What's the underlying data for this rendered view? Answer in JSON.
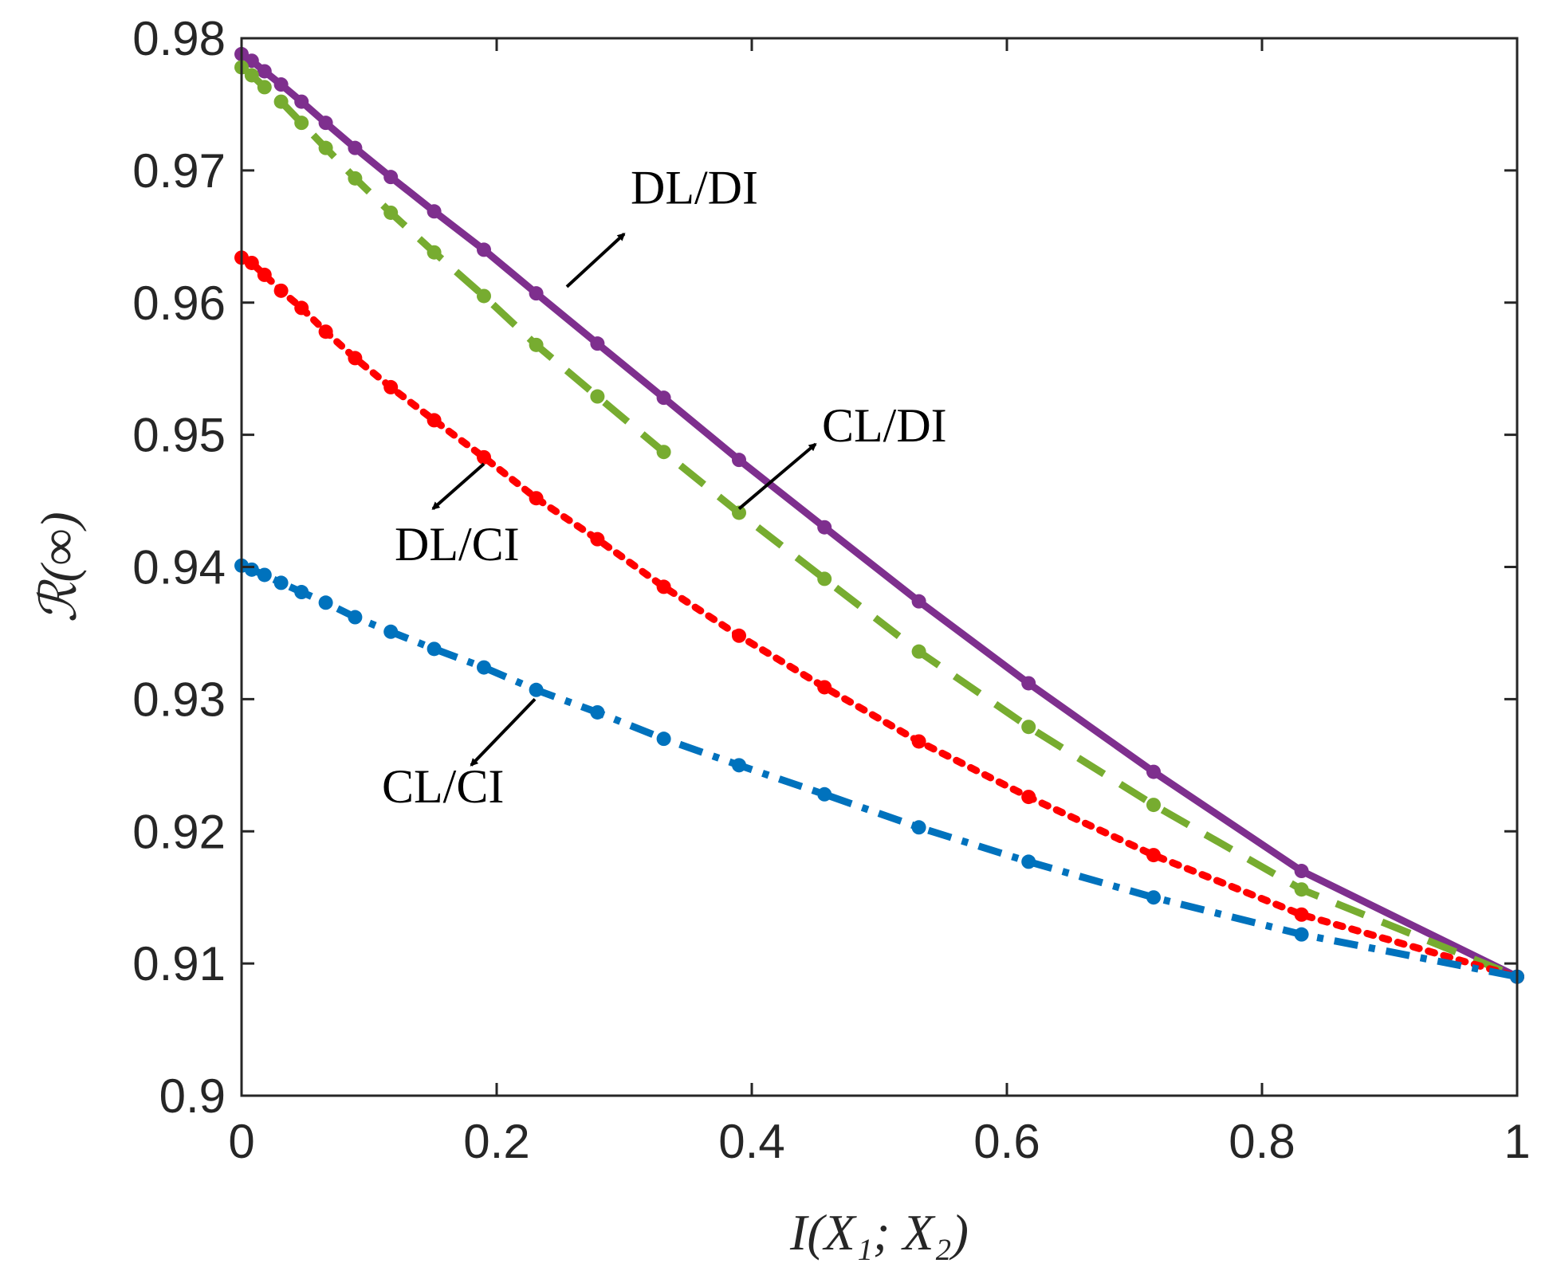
{
  "chart_data": {
    "type": "line",
    "xlabel": "I(X₁; X₂)",
    "ylabel": "ℛ(∞)",
    "xlim": [
      0,
      1
    ],
    "ylim": [
      0.9,
      0.98
    ],
    "x_ticks": [
      0,
      0.2,
      0.4,
      0.6,
      0.8,
      1
    ],
    "x_tick_labels": [
      "0",
      "0.2",
      "0.4",
      "0.6",
      "0.8",
      "1"
    ],
    "y_ticks": [
      0.9,
      0.91,
      0.92,
      0.93,
      0.94,
      0.95,
      0.96,
      0.97,
      0.98
    ],
    "y_tick_labels": [
      "0.9",
      "0.91",
      "0.92",
      "0.93",
      "0.94",
      "0.95",
      "0.96",
      "0.97",
      "0.98"
    ],
    "grid": false,
    "x": [
      0,
      0.008,
      0.018,
      0.031,
      0.047,
      0.066,
      0.089,
      0.117,
      0.151,
      0.19,
      0.231,
      0.279,
      0.331,
      0.39,
      0.457,
      0.531,
      0.617,
      0.715,
      0.831,
      1.0
    ],
    "series": [
      {
        "name": "DL/DI",
        "color": "#7E2F8E",
        "style": "solid",
        "values": [
          0.9788,
          0.9783,
          0.9775,
          0.9765,
          0.9752,
          0.9736,
          0.9717,
          0.9695,
          0.9669,
          0.964,
          0.9607,
          0.9569,
          0.9528,
          0.9481,
          0.943,
          0.9374,
          0.9312,
          0.9245,
          0.917,
          0.909
        ]
      },
      {
        "name": "CL/DI",
        "color": "#77AC30",
        "style": "dashed",
        "values": [
          0.9778,
          0.9772,
          0.9763,
          0.9752,
          0.9736,
          0.9717,
          0.9694,
          0.9668,
          0.9638,
          0.9605,
          0.9568,
          0.9529,
          0.9487,
          0.9441,
          0.9391,
          0.9336,
          0.9279,
          0.922,
          0.9156,
          0.909
        ]
      },
      {
        "name": "DL/CI",
        "color": "#FF0000",
        "style": "dotted",
        "values": [
          0.9634,
          0.963,
          0.9621,
          0.9609,
          0.9596,
          0.9578,
          0.9558,
          0.9536,
          0.9511,
          0.9483,
          0.9452,
          0.9421,
          0.9385,
          0.9348,
          0.9309,
          0.9268,
          0.9226,
          0.9182,
          0.9137,
          0.909
        ]
      },
      {
        "name": "CL/CI",
        "color": "#0072BD",
        "style": "dashdot",
        "values": [
          0.9401,
          0.9398,
          0.9394,
          0.9388,
          0.9381,
          0.9373,
          0.9362,
          0.9351,
          0.9338,
          0.9324,
          0.9307,
          0.929,
          0.927,
          0.925,
          0.9228,
          0.9203,
          0.9177,
          0.915,
          0.9122,
          0.909
        ]
      }
    ],
    "annotations": [
      {
        "text": "DL/DI",
        "series": "DL/DI",
        "arrow_from": [
          0.255,
          0.9612
        ],
        "arrow_to": [
          0.3,
          0.9652
        ],
        "text_at": [
          0.305,
          0.9675
        ]
      },
      {
        "text": "CL/DI",
        "series": "CL/DI",
        "arrow_from": [
          0.39,
          0.9444
        ],
        "arrow_to": [
          0.45,
          0.9493
        ],
        "text_at": [
          0.455,
          0.9495
        ]
      },
      {
        "text": "DL/CI",
        "series": "DL/CI",
        "arrow_from": [
          0.19,
          0.9478
        ],
        "arrow_to": [
          0.15,
          0.9444
        ],
        "text_at": [
          0.12,
          0.9405
        ]
      },
      {
        "text": "CL/CI",
        "series": "CL/CI",
        "arrow_from": [
          0.23,
          0.93
        ],
        "arrow_to": [
          0.18,
          0.925
        ],
        "text_at": [
          0.11,
          0.9222
        ]
      }
    ]
  }
}
